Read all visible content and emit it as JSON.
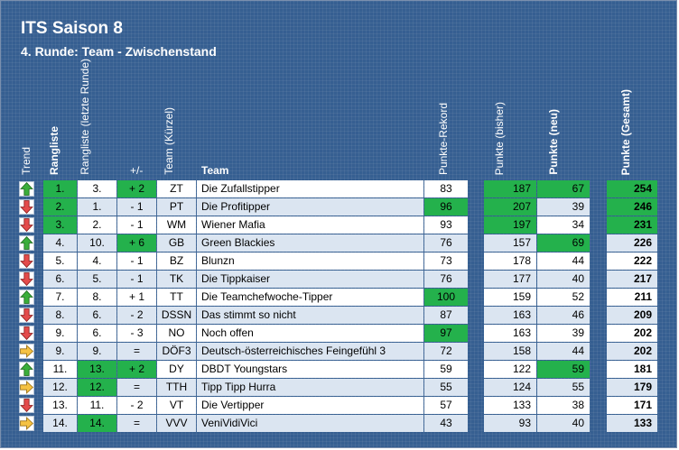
{
  "title": "ITS Saison 8",
  "subtitle": "4. Runde: Team - Zwischenstand",
  "headers": {
    "trend": "Trend",
    "rangliste": "Rangliste",
    "rangliste_letzte": "Rangliste (letzte Runde)",
    "plusminus": "+/-",
    "kuerzel": "Team (Kürzel)",
    "team": "Team",
    "rekord": "Punkte-Rekord",
    "bisher": "Punkte (bisher)",
    "neu": "Punkte (neu)",
    "gesamt": "Punkte (Gesamt)"
  },
  "colors": {
    "panel": "#365f91",
    "highlight": "#24b14c",
    "row_light": "#dbe5f1",
    "arrow_up": "#3aae3a",
    "arrow_down": "#e44b4b",
    "arrow_same": "#f5c243"
  },
  "rows": [
    {
      "trend": "up",
      "rank": "1.",
      "prev": "3.",
      "diff": "+ 2",
      "code": "ZT",
      "team": "Die Zufallstipper",
      "rekord": "83",
      "bisher": "187",
      "neu": "67",
      "gesamt": "254"
    },
    {
      "trend": "down",
      "rank": "2.",
      "prev": "1.",
      "diff": "- 1",
      "code": "PT",
      "team": "Die Profitipper",
      "rekord": "96",
      "bisher": "207",
      "neu": "39",
      "gesamt": "246"
    },
    {
      "trend": "down",
      "rank": "3.",
      "prev": "2.",
      "diff": "- 1",
      "code": "WM",
      "team": "Wiener Mafia",
      "rekord": "93",
      "bisher": "197",
      "neu": "34",
      "gesamt": "231"
    },
    {
      "trend": "up",
      "rank": "4.",
      "prev": "10.",
      "diff": "+ 6",
      "code": "GB",
      "team": "Green Blackies",
      "rekord": "76",
      "bisher": "157",
      "neu": "69",
      "gesamt": "226"
    },
    {
      "trend": "down",
      "rank": "5.",
      "prev": "4.",
      "diff": "- 1",
      "code": "BZ",
      "team": "Blunzn",
      "rekord": "73",
      "bisher": "178",
      "neu": "44",
      "gesamt": "222"
    },
    {
      "trend": "down",
      "rank": "6.",
      "prev": "5.",
      "diff": "- 1",
      "code": "TK",
      "team": "Die Tippkaiser",
      "rekord": "76",
      "bisher": "177",
      "neu": "40",
      "gesamt": "217"
    },
    {
      "trend": "up",
      "rank": "7.",
      "prev": "8.",
      "diff": "+ 1",
      "code": "TT",
      "team": "Die Teamchefwoche-Tipper",
      "rekord": "100",
      "bisher": "159",
      "neu": "52",
      "gesamt": "211"
    },
    {
      "trend": "down",
      "rank": "8.",
      "prev": "6.",
      "diff": "- 2",
      "code": "DSSN",
      "team": "Das stimmt so nicht",
      "rekord": "87",
      "bisher": "163",
      "neu": "46",
      "gesamt": "209"
    },
    {
      "trend": "down",
      "rank": "9.",
      "prev": "6.",
      "diff": "- 3",
      "code": "NO",
      "team": "Noch offen",
      "rekord": "97",
      "bisher": "163",
      "neu": "39",
      "gesamt": "202"
    },
    {
      "trend": "same",
      "rank": "9.",
      "prev": "9.",
      "diff": "=",
      "code": "DÖF3",
      "team": "Deutsch-österreichisches Feingefühl 3",
      "rekord": "72",
      "bisher": "158",
      "neu": "44",
      "gesamt": "202"
    },
    {
      "trend": "up",
      "rank": "11.",
      "prev": "13.",
      "diff": "+ 2",
      "code": "DY",
      "team": "DBDT Youngstars",
      "rekord": "59",
      "bisher": "122",
      "neu": "59",
      "gesamt": "181"
    },
    {
      "trend": "same",
      "rank": "12.",
      "prev": "12.",
      "diff": "=",
      "code": "TTH",
      "team": "Tipp Tipp Hurra",
      "rekord": "55",
      "bisher": "124",
      "neu": "55",
      "gesamt": "179"
    },
    {
      "trend": "down",
      "rank": "13.",
      "prev": "11.",
      "diff": "- 2",
      "code": "VT",
      "team": "Die Vertipper",
      "rekord": "57",
      "bisher": "133",
      "neu": "38",
      "gesamt": "171"
    },
    {
      "trend": "same",
      "rank": "14.",
      "prev": "14.",
      "diff": "=",
      "code": "VVV",
      "team": "VeniVidiVici",
      "rekord": "43",
      "bisher": "93",
      "neu": "40",
      "gesamt": "133"
    }
  ],
  "highlights": {
    "rank": [
      0,
      1,
      2
    ],
    "prev": [
      10,
      11,
      13
    ],
    "diff": [
      0,
      3,
      10
    ],
    "rekord": [
      1,
      6,
      8
    ],
    "bisher": [
      0,
      1,
      2
    ],
    "neu": [
      0,
      3,
      10
    ],
    "gesamt": [
      0,
      1,
      2
    ]
  }
}
